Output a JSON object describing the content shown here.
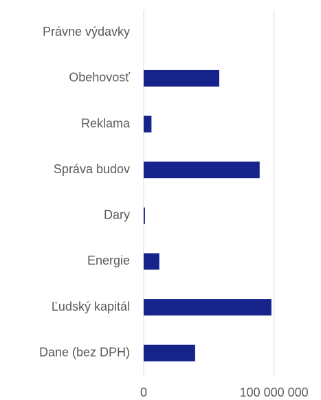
{
  "chart_data": {
    "type": "barh",
    "categories": [
      "Právne výdavky",
      "Obehovosť",
      "Reklama",
      "Správa budov",
      "Dary",
      "Energie",
      "Ľudský kapitál",
      "Dane (bez DPH)"
    ],
    "values": [
      0,
      58000000,
      6000000,
      89000000,
      1000000,
      12000000,
      98000000,
      39500000
    ],
    "color": "#16238a",
    "xlim": [
      0,
      135000000
    ],
    "xticks": [
      0,
      {
        "value": 100000000,
        "label": "100 000 000"
      }
    ],
    "grid": true
  }
}
